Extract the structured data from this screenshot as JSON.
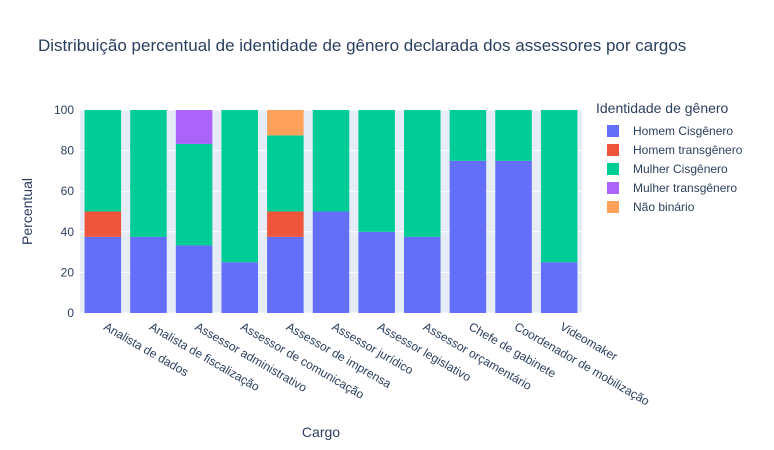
{
  "chart_data": {
    "type": "bar",
    "stacked": true,
    "title": "Distribuição percentual de identidade de gênero declarada dos assessores por cargos",
    "xlabel": "Cargo",
    "ylabel": "Percentual",
    "ylim": [
      0,
      100
    ],
    "yticks": [
      0,
      20,
      40,
      60,
      80,
      100
    ],
    "grid": true,
    "legend_title": "Identidade de gênero",
    "legend_position": "top-right",
    "categories": [
      "Analista de dados",
      "Analista de fiscalização",
      "Assessor administrativo",
      "Assessor de comunicação",
      "Assessor de imprensa",
      "Assessor jurídico",
      "Assessor legislativo",
      "Assessor orçamentário",
      "Chefe de gabinete",
      "Coordenador de mobilização",
      "Videomaker"
    ],
    "series": [
      {
        "name": "Homem Cisgênero",
        "color": "#636efa",
        "values": [
          37.5,
          37.5,
          33.3,
          25,
          37.5,
          50,
          40,
          37.5,
          75,
          75,
          25
        ]
      },
      {
        "name": "Homem transgênero",
        "color": "#ef553b",
        "values": [
          12.5,
          0,
          0,
          0,
          12.5,
          0,
          0,
          0,
          0,
          0,
          0
        ]
      },
      {
        "name": "Mulher Cisgênero",
        "color": "#00cc96",
        "values": [
          50,
          62.5,
          50,
          75,
          37.5,
          50,
          60,
          62.5,
          25,
          25,
          75
        ]
      },
      {
        "name": "Mulher transgênero",
        "color": "#ab63fa",
        "values": [
          0,
          0,
          16.7,
          0,
          0,
          0,
          0,
          0,
          0,
          0,
          0
        ]
      },
      {
        "name": "Não binário",
        "color": "#ffa15a",
        "values": [
          0,
          0,
          0,
          0,
          12.5,
          0,
          0,
          0,
          0,
          0,
          0
        ]
      }
    ],
    "plot_background": "#e5ecf6",
    "text_color": "#2a3f5f"
  }
}
